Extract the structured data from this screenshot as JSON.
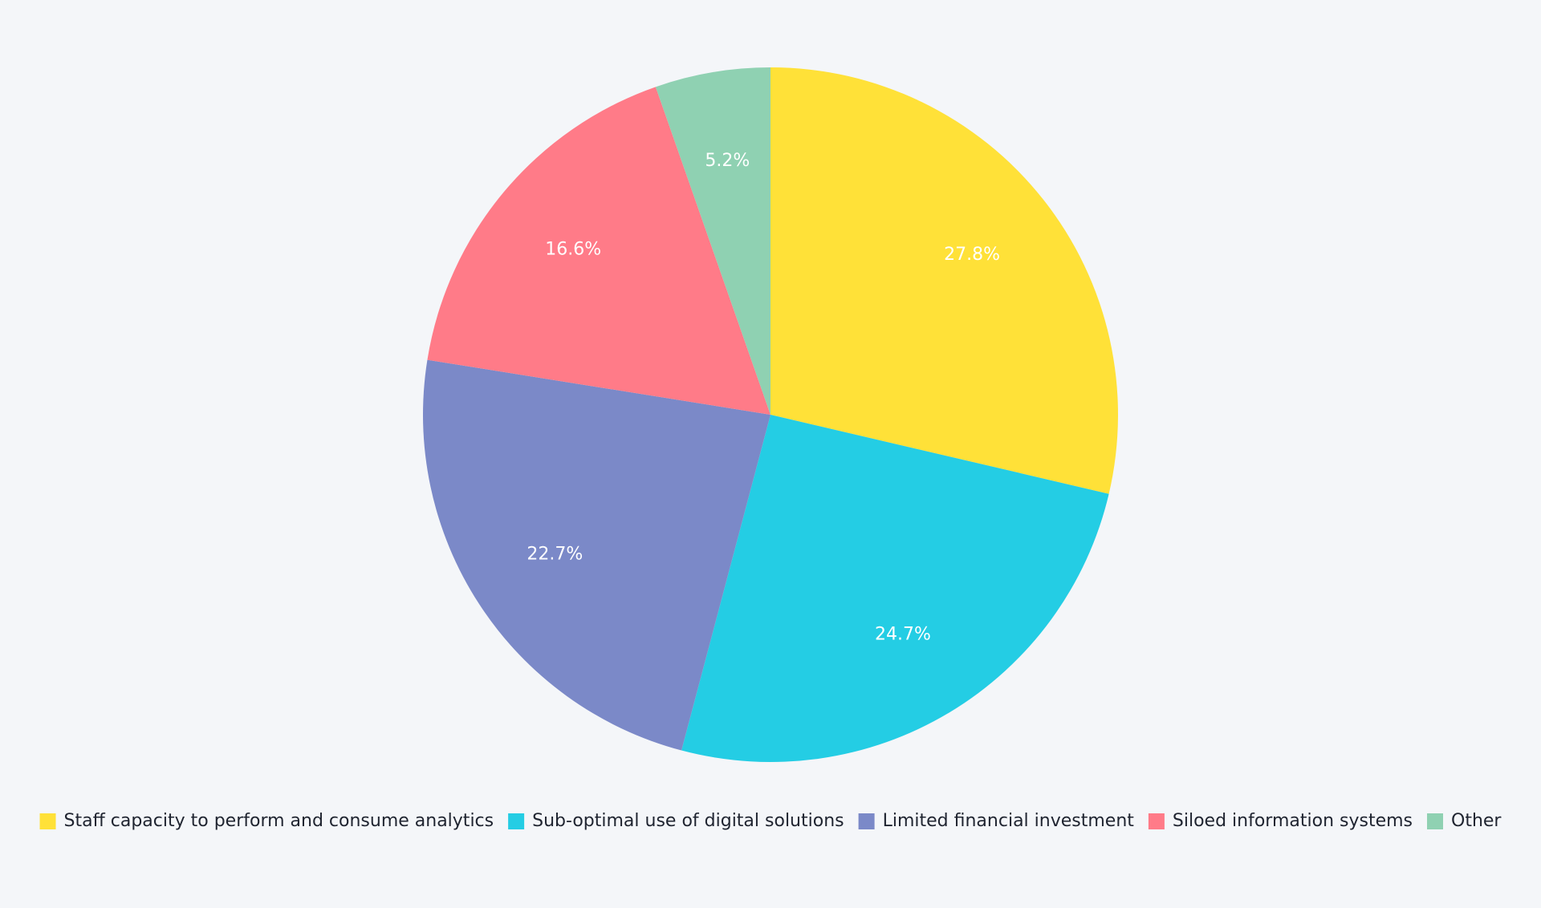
{
  "chart_data": {
    "type": "pie",
    "categories": [
      "Staff capacity to perform and consume analytics",
      "Sub-optimal use of digital solutions",
      "Limited financial investment",
      "Siloed information systems",
      "Other"
    ],
    "values": [
      27.8,
      24.7,
      22.7,
      16.6,
      5.2
    ],
    "value_labels": [
      "27.8%",
      "24.7%",
      "22.7%",
      "16.6%",
      "5.2%"
    ],
    "colors": [
      "#ffe138",
      "#24cde4",
      "#7b89c8",
      "#ff7b88",
      "#8fd1b2"
    ],
    "legend": "bottom"
  }
}
